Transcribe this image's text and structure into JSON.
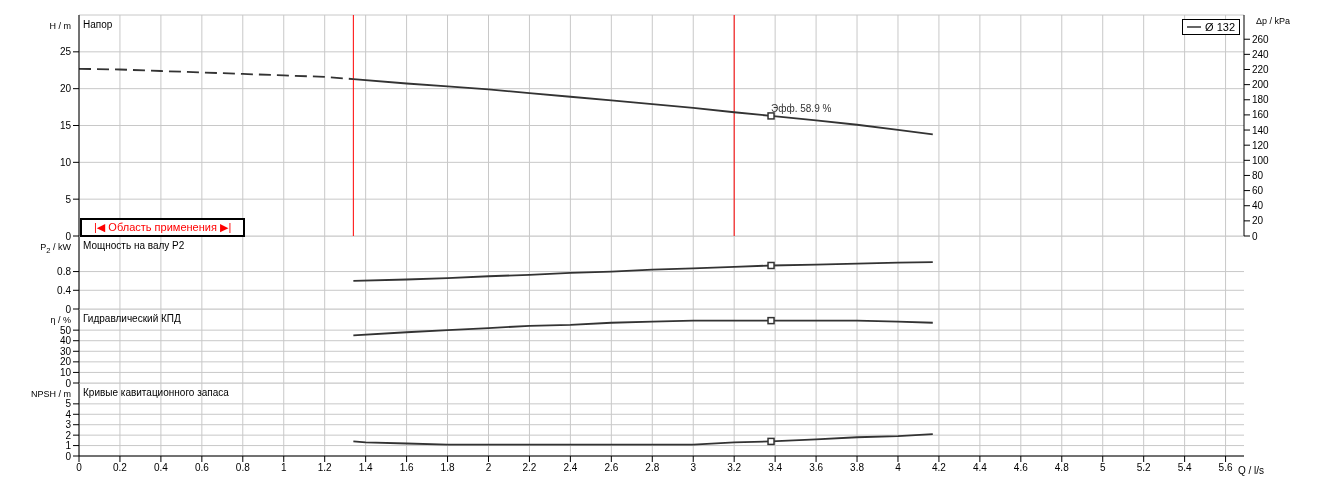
{
  "chart_data": [
    {
      "type": "line",
      "title": "Напор",
      "ylabel": "H / m",
      "y2label": "Δp / kPa",
      "xlim": [
        0,
        5.69
      ],
      "xticks": [
        0,
        0.2,
        0.4,
        0.6,
        0.8,
        1,
        1.2,
        1.4,
        1.6,
        1.8,
        2,
        2.2,
        2.4,
        2.6,
        2.8,
        3,
        3.2,
        3.4,
        3.6,
        3.8,
        4,
        4.2,
        4.4,
        4.6,
        4.8,
        5,
        5.2,
        5.4,
        5.6
      ],
      "ylim": [
        0,
        30
      ],
      "yticks": [
        0,
        5,
        10,
        15,
        20,
        25
      ],
      "y2lim": [
        0,
        292
      ],
      "y2ticks": [
        0,
        20,
        40,
        60,
        80,
        100,
        120,
        140,
        160,
        180,
        200,
        220,
        240,
        260
      ],
      "grid": true,
      "legend": "top right",
      "tick_labels": "y",
      "series": [
        {
          "color": "#333333",
          "line_style": "dashed",
          "x": [
            0,
            0.2,
            0.4,
            0.6,
            0.8,
            1,
            1.2,
            1.34
          ],
          "values": [
            22.7,
            22.6,
            22.4,
            22.2,
            22,
            21.8,
            21.6,
            21.3
          ]
        },
        {
          "name": "Ø 132",
          "color": "#333333",
          "line_style": "solid",
          "x": [
            1.34,
            1.6,
            1.8,
            2,
            2.2,
            2.4,
            2.6,
            2.8,
            3,
            3.2,
            3.38,
            3.6,
            3.8,
            4,
            4.17
          ],
          "values": [
            21.3,
            20.7,
            20.3,
            19.9,
            19.4,
            18.9,
            18.4,
            17.9,
            17.4,
            16.8,
            16.3,
            15.7,
            15.1,
            14.4,
            13.8
          ]
        },
        {
          "type": "scatter",
          "marker": "square",
          "color": "#333333",
          "x": [
            3.38
          ],
          "values": [
            16.3
          ]
        }
      ],
      "ref_lines": [
        {
          "axis": "x",
          "value": 1.34,
          "color": "#ff0000"
        },
        {
          "axis": "x",
          "value": 3.2,
          "color": "#ff0000"
        }
      ],
      "annotations": [
        {
          "text": "Эфф. 58.9 %",
          "x": 3.38,
          "y": 16.3
        },
        "|◀ Область применения ▶|"
      ]
    },
    {
      "type": "line",
      "title": "Мощность на валу P2",
      "ylabel": "P$_{2}$ / kW",
      "xlim": [
        0,
        5.69
      ],
      "xticks": [
        0,
        0.2,
        0.4,
        0.6,
        0.8,
        1,
        1.2,
        1.4,
        1.6,
        1.8,
        2,
        2.2,
        2.4,
        2.6,
        2.8,
        3,
        3.2,
        3.4,
        3.6,
        3.8,
        4,
        4.2,
        4.4,
        4.6,
        4.8,
        5,
        5.2,
        5.4,
        5.6
      ],
      "ylim": [
        0,
        1.56
      ],
      "yticks": [
        0,
        0.4,
        0.8
      ],
      "grid": true,
      "tick_labels": "y",
      "series": [
        {
          "color": "#333333",
          "line_style": "solid",
          "x": [
            1.34,
            1.6,
            1.8,
            2,
            2.2,
            2.4,
            2.6,
            2.8,
            3,
            3.2,
            3.38,
            3.6,
            3.8,
            4,
            4.17
          ],
          "values": [
            0.6,
            0.63,
            0.66,
            0.7,
            0.73,
            0.77,
            0.8,
            0.84,
            0.87,
            0.9,
            0.93,
            0.95,
            0.97,
            0.99,
            1
          ]
        },
        {
          "type": "scatter",
          "marker": "square",
          "color": "#333333",
          "x": [
            3.38
          ],
          "values": [
            0.93
          ]
        }
      ]
    },
    {
      "type": "line",
      "title": "Гидравлический КПД",
      "ylabel": "η / %",
      "xlim": [
        0,
        5.69
      ],
      "xticks": [
        0,
        0.2,
        0.4,
        0.6,
        0.8,
        1,
        1.2,
        1.4,
        1.6,
        1.8,
        2,
        2.2,
        2.4,
        2.6,
        2.8,
        3,
        3.2,
        3.4,
        3.6,
        3.8,
        4,
        4.2,
        4.4,
        4.6,
        4.8,
        5,
        5.2,
        5.4,
        5.6
      ],
      "ylim": [
        0,
        70
      ],
      "yticks": [
        0,
        10,
        20,
        30,
        40,
        50
      ],
      "grid": true,
      "tick_labels": "y",
      "series": [
        {
          "color": "#333333",
          "line_style": "solid",
          "x": [
            1.34,
            1.6,
            1.8,
            2,
            2.2,
            2.4,
            2.6,
            2.8,
            3,
            3.2,
            3.38,
            3.6,
            3.8,
            4,
            4.17
          ],
          "values": [
            45,
            48,
            50,
            52,
            54,
            55,
            57,
            58,
            59,
            59,
            59,
            59,
            59,
            58,
            57
          ]
        },
        {
          "type": "scatter",
          "marker": "square",
          "color": "#333333",
          "x": [
            3.38
          ],
          "values": [
            59
          ]
        }
      ]
    },
    {
      "type": "line",
      "title": "Кривые кавитационного запаса",
      "ylabel": "NPSH / m",
      "xlabel": "Q / l/s",
      "xlim": [
        0,
        5.69
      ],
      "xticks": [
        0,
        0.2,
        0.4,
        0.6,
        0.8,
        1,
        1.2,
        1.4,
        1.6,
        1.8,
        2,
        2.2,
        2.4,
        2.6,
        2.8,
        3,
        3.2,
        3.4,
        3.6,
        3.8,
        4,
        4.2,
        4.4,
        4.6,
        4.8,
        5,
        5.2,
        5.4,
        5.6
      ],
      "ylim": [
        0,
        7
      ],
      "yticks": [
        0,
        1,
        2,
        3,
        4,
        5
      ],
      "grid": true,
      "series": [
        {
          "color": "#333333",
          "line_style": "solid",
          "x": [
            1.34,
            1.4,
            1.6,
            1.8,
            2,
            2.4,
            2.8,
            3,
            3.2,
            3.38,
            3.6,
            3.8,
            4,
            4.17
          ],
          "values": [
            1.4,
            1.3,
            1.2,
            1.1,
            1.1,
            1.1,
            1.1,
            1.1,
            1.3,
            1.4,
            1.6,
            1.8,
            1.9,
            2.1
          ]
        },
        {
          "type": "scatter",
          "marker": "square",
          "color": "#333333",
          "x": [
            3.38
          ],
          "values": [
            1.4
          ]
        }
      ]
    }
  ]
}
